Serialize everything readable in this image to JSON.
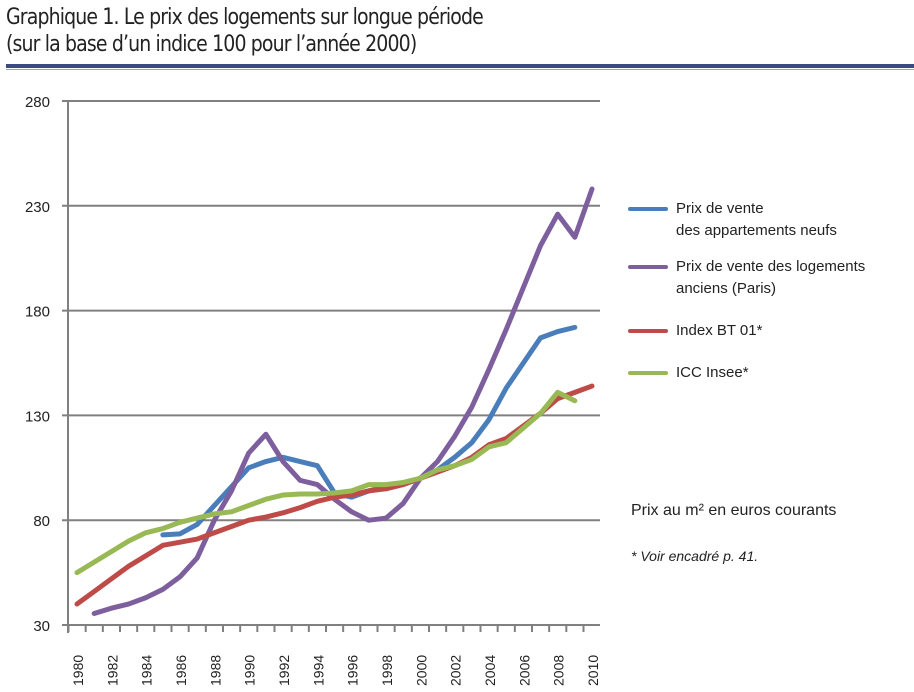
{
  "title_line1": "Graphique 1. Le prix des logements sur longue période",
  "title_line2": "(sur la base d’un indice 100 pour l’année 2000)",
  "unit_note": "Prix au m² en euros courants",
  "footnote": "* Voir encadré p. 41.",
  "chart_data": {
    "type": "line",
    "title": "Graphique 1. Le prix des logements sur longue période (sur la base d’un indice 100 pour l’année 2000)",
    "ylim": [
      30,
      280
    ],
    "yticks": [
      30,
      80,
      130,
      180,
      230,
      280
    ],
    "xlim": [
      1980,
      2010
    ],
    "xticks": [
      1980,
      1982,
      1984,
      1986,
      1988,
      1990,
      1992,
      1994,
      1996,
      1998,
      2000,
      2002,
      2004,
      2006,
      2008,
      2010
    ],
    "grid": "horizontal",
    "legend": "right",
    "series": [
      {
        "name": "Prix de vente des appartements neufs",
        "label_lines": [
          "Prix de vente",
          "des appartements neufs"
        ],
        "color": "#4a7ebb",
        "x": [
          1985,
          1986,
          1987,
          1988,
          1989,
          1990,
          1991,
          1992,
          1993,
          1994,
          1995,
          1996,
          1997,
          1998,
          1999,
          2000,
          2001,
          2002,
          2003,
          2004,
          2005,
          2006,
          2007,
          2008,
          2009
        ],
        "values": [
          73,
          73.5,
          78,
          87,
          96,
          105,
          108,
          110,
          108,
          106,
          93,
          91,
          94,
          96,
          97,
          100,
          104,
          110,
          117,
          128,
          143,
          155,
          167,
          170,
          172
        ]
      },
      {
        "name": "Prix de vente des logements anciens (Paris)",
        "label_lines": [
          "Prix de vente des logements",
          "anciens (Paris)"
        ],
        "color": "#7e5f9e",
        "x": [
          1981,
          1982,
          1983,
          1984,
          1985,
          1986,
          1987,
          1988,
          1989,
          1990,
          1991,
          1992,
          1993,
          1994,
          1995,
          1996,
          1997,
          1998,
          1999,
          2000,
          2001,
          2002,
          2003,
          2004,
          2005,
          2006,
          2007,
          2008,
          2009,
          2010
        ],
        "values": [
          35.5,
          38,
          40,
          43,
          47,
          53,
          62,
          80,
          94,
          112,
          121,
          108,
          99,
          97,
          90,
          84,
          80,
          81,
          88,
          100,
          108,
          120,
          134,
          152,
          171,
          191,
          211,
          226,
          215,
          238
        ]
      },
      {
        "name": "Index BT 01*",
        "label_lines": [
          "Index BT 01*"
        ],
        "color": "#be4b48",
        "x": [
          1980,
          1981,
          1982,
          1983,
          1984,
          1985,
          1986,
          1987,
          1988,
          1989,
          1990,
          1991,
          1992,
          1993,
          1994,
          1995,
          1996,
          1997,
          1998,
          1999,
          2000,
          2001,
          2002,
          2003,
          2004,
          2005,
          2006,
          2007,
          2008,
          2009,
          2010
        ],
        "values": [
          40,
          46,
          52,
          58,
          63,
          68,
          69.5,
          71,
          74,
          77,
          80,
          81.5,
          83.5,
          86,
          89,
          91,
          92,
          94,
          95,
          97,
          100,
          103,
          106,
          110,
          116,
          119,
          125,
          131,
          138,
          141,
          144
        ]
      },
      {
        "name": "ICC Insee*",
        "label_lines": [
          "ICC Insee*"
        ],
        "color": "#98b954",
        "x": [
          1980,
          1981,
          1982,
          1983,
          1984,
          1985,
          1986,
          1987,
          1988,
          1989,
          1990,
          1991,
          1992,
          1993,
          1994,
          1995,
          1996,
          1997,
          1998,
          1999,
          2000,
          2001,
          2002,
          2003,
          2004,
          2005,
          2006,
          2007,
          2008,
          2009
        ],
        "values": [
          55,
          60,
          65,
          70,
          74,
          76,
          79,
          81,
          83,
          84,
          87,
          90,
          92,
          92.5,
          92.5,
          93,
          94,
          97,
          97,
          98,
          100,
          104,
          106,
          109,
          115,
          117,
          124,
          131,
          141,
          137
        ]
      }
    ]
  }
}
